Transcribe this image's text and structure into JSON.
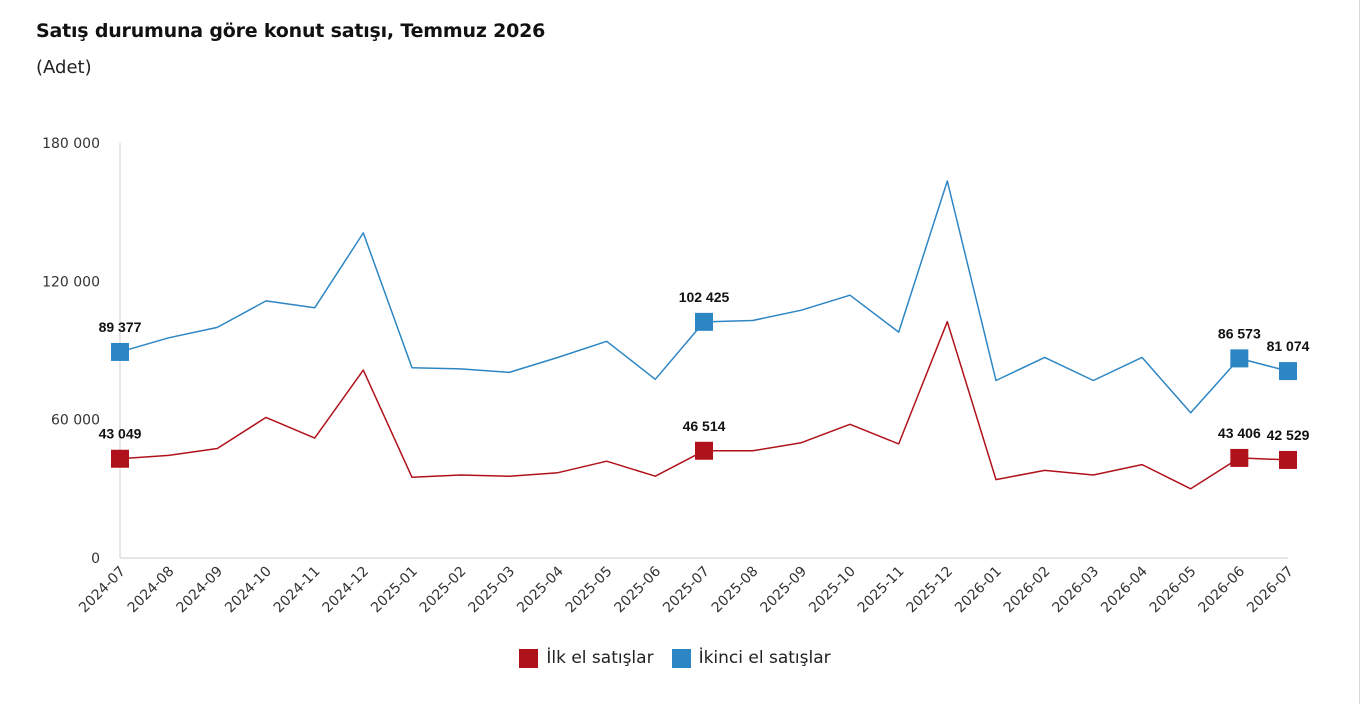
{
  "header": {
    "title": "Satış durumuna göre konut satışı, Temmuz 2026",
    "subtitle": "(Adet)"
  },
  "chart_data": {
    "type": "line",
    "title": "Satış durumuna göre konut satışı, Temmuz 2026",
    "subtitle": "(Adet)",
    "xlabel": "",
    "ylabel": "",
    "ylim": [
      0,
      180000
    ],
    "yticks": [
      0,
      60000,
      120000,
      180000
    ],
    "ytick_labels": [
      "0",
      "60 000",
      "120 000",
      "180 000"
    ],
    "grid": false,
    "legend_position": "bottom",
    "categories": [
      "2024-07",
      "2024-08",
      "2024-09",
      "2024-10",
      "2024-11",
      "2024-12",
      "2025-01",
      "2025-02",
      "2025-03",
      "2025-04",
      "2025-05",
      "2025-06",
      "2025-07",
      "2025-08",
      "2025-09",
      "2025-10",
      "2025-11",
      "2025-12",
      "2026-01",
      "2026-02",
      "2026-03",
      "2026-04",
      "2026-05",
      "2026-06",
      "2026-07"
    ],
    "series": [
      {
        "name": "İlk el satışlar",
        "color": "#b0121b",
        "values": [
          43049,
          44500,
          47500,
          61000,
          52000,
          81500,
          35000,
          36000,
          35500,
          37000,
          42000,
          35500,
          46514,
          46500,
          50000,
          58000,
          49500,
          102500,
          34000,
          38000,
          36000,
          40500,
          30000,
          43406,
          42529
        ],
        "labeled": [
          {
            "index": 0,
            "text": "43 049"
          },
          {
            "index": 12,
            "text": "46 514"
          },
          {
            "index": 23,
            "text": "43 406"
          },
          {
            "index": 24,
            "text": "42 529"
          }
        ]
      },
      {
        "name": "İkinci el satışlar",
        "color": "#2d86c4",
        "values": [
          89377,
          95500,
          100000,
          111500,
          108500,
          141000,
          82500,
          82000,
          80500,
          87000,
          94000,
          77500,
          102425,
          103000,
          107500,
          114000,
          98000,
          163500,
          77000,
          87000,
          77000,
          87000,
          63000,
          86573,
          81074
        ],
        "labeled": [
          {
            "index": 0,
            "text": "89 377"
          },
          {
            "index": 12,
            "text": "102 425"
          },
          {
            "index": 23,
            "text": "86 573"
          },
          {
            "index": 24,
            "text": "81 074"
          }
        ]
      }
    ]
  }
}
